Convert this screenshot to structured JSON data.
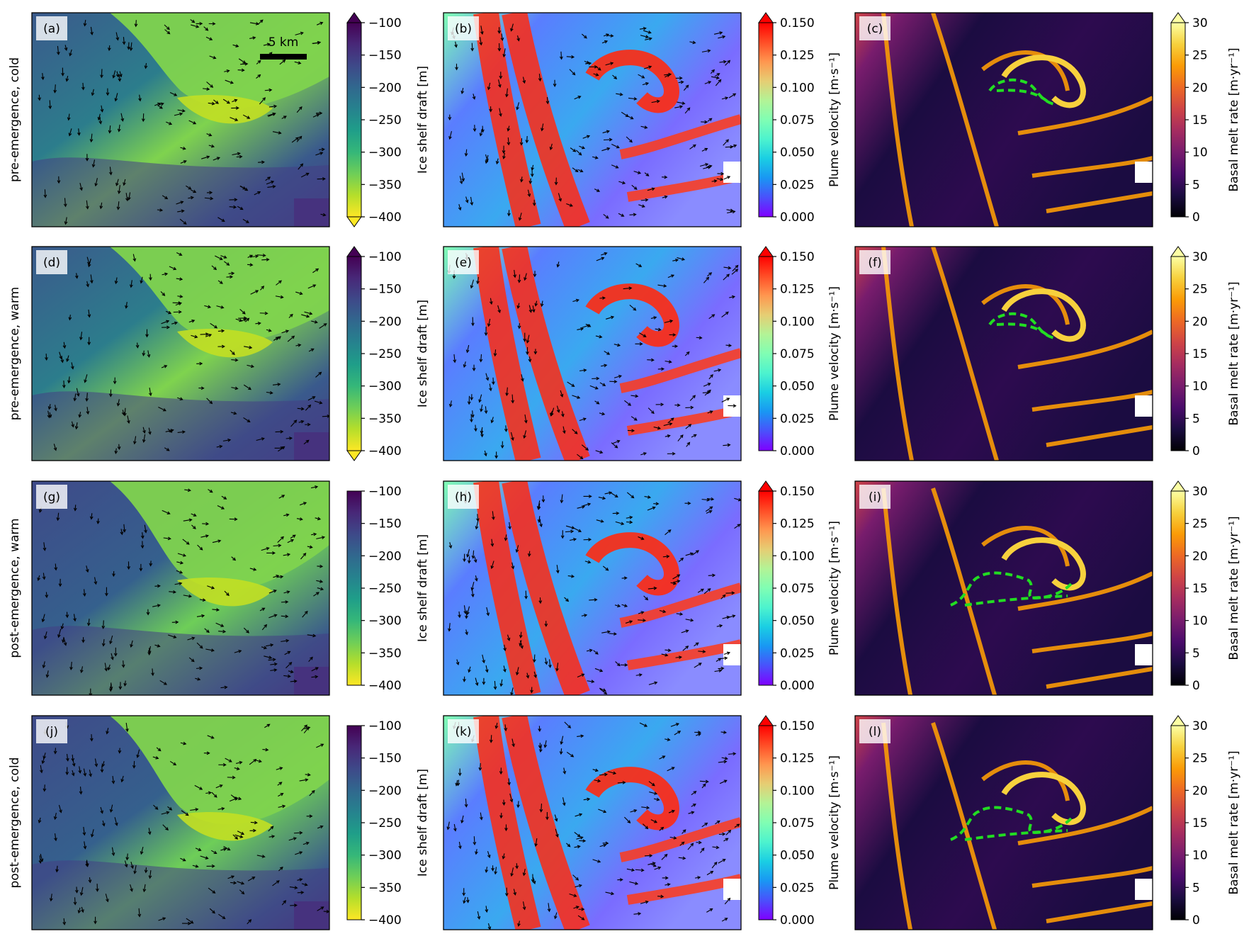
{
  "chart_data": {
    "type": "heatmap",
    "rows": [
      {
        "label": "pre-emergence, cold",
        "panels": [
          "(a)",
          "(b)",
          "(c)"
        ]
      },
      {
        "label": "pre-emergence, warm",
        "panels": [
          "(d)",
          "(e)",
          "(f)"
        ]
      },
      {
        "label": "post-emergence, warm",
        "panels": [
          "(g)",
          "(h)",
          "(i)"
        ]
      },
      {
        "label": "post-emergence, cold",
        "panels": [
          "(j)",
          "(k)",
          "(l)"
        ]
      }
    ],
    "columns": [
      {
        "variable": "Ice shelf draft",
        "colorbar_label": "Ice shelf draft [m]",
        "colormap": "viridis (reversed: yellow = -400, dark purple = -100)",
        "range": [
          -400,
          -100
        ],
        "ticks": [
          "−100",
          "−150",
          "−200",
          "−250",
          "−300",
          "−350",
          "−400"
        ],
        "extend": "both (pre-emergence rows), none (post-emergence rows)",
        "colors": [
          "#fde725",
          "#b5de2b",
          "#6ece58",
          "#35b779",
          "#1f9e89",
          "#26828e",
          "#31688e",
          "#3e4989",
          "#482878",
          "#440154"
        ],
        "overlay": "plume velocity arrows (black)"
      },
      {
        "variable": "Plume velocity",
        "colorbar_label": "Plume velocity [m·s⁻¹]",
        "colormap": "rainbow",
        "range": [
          0.0,
          0.15
        ],
        "ticks": [
          "0.150",
          "0.125",
          "0.100",
          "0.075",
          "0.050",
          "0.025",
          "0.000"
        ],
        "extend": "max",
        "colors": [
          "#7f00ff",
          "#4a50fc",
          "#1996f3",
          "#1acee3",
          "#4df3ce",
          "#80feb3",
          "#b3f396",
          "#e6cd73",
          "#ff964f",
          "#ff4d26",
          "#ff0000"
        ],
        "overlay": "plume velocity arrows (black)"
      },
      {
        "variable": "Basal melt rate",
        "colorbar_label": "Basal melt rate [m·yr⁻¹]",
        "colormap": "inferno",
        "range": [
          0,
          30
        ],
        "ticks": [
          "30",
          "25",
          "20",
          "15",
          "10",
          "5",
          "0"
        ],
        "extend": "max",
        "colors": [
          "#000004",
          "#1b0c41",
          "#4a0c6b",
          "#781c6d",
          "#a52c60",
          "#cf4446",
          "#ed6925",
          "#fb9b06",
          "#f7d13d",
          "#fcffa4"
        ],
        "overlay": "green dashed contour (ice shelf edge)"
      }
    ],
    "annotations": [
      "5 km"
    ]
  }
}
